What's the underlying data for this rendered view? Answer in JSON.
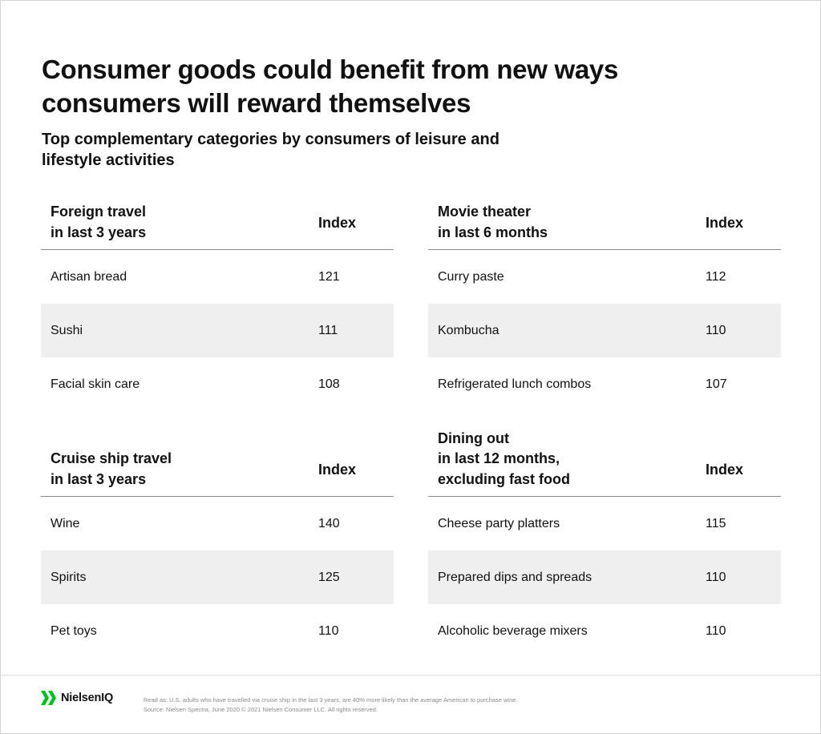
{
  "title": "Consumer goods could benefit from new ways consumers will reward themselves",
  "subtitle": "Top complementary categories by consumers of leisure and lifestyle activities",
  "tables": [
    {
      "header": "Foreign travel\nin last 3 years",
      "index_label": "Index",
      "rows": [
        {
          "name": "Artisan bread",
          "value": "121"
        },
        {
          "name": "Sushi",
          "value": "111"
        },
        {
          "name": "Facial skin care",
          "value": "108"
        }
      ]
    },
    {
      "header": "Movie theater\nin last 6 months",
      "index_label": "Index",
      "rows": [
        {
          "name": "Curry paste",
          "value": "112"
        },
        {
          "name": "Kombucha",
          "value": "110"
        },
        {
          "name": "Refrigerated lunch combos",
          "value": "107"
        }
      ]
    },
    {
      "header": "Cruise ship travel\nin last 3 years",
      "index_label": "Index",
      "rows": [
        {
          "name": "Wine",
          "value": "140"
        },
        {
          "name": "Spirits",
          "value": "125"
        },
        {
          "name": "Pet toys",
          "value": "110"
        }
      ]
    },
    {
      "header": "Dining out\nin last 12 months,\nexcluding fast food",
      "index_label": "Index",
      "rows": [
        {
          "name": "Cheese party platters",
          "value": "115"
        },
        {
          "name": "Prepared dips and spreads",
          "value": "110"
        },
        {
          "name": "Alcoholic beverage mixers",
          "value": "110"
        }
      ]
    }
  ],
  "footer": {
    "brand": "NielsenIQ",
    "brand_color": "#00c41a",
    "note_line1": "Read as: U.S. adults who have travelled via cruise ship in the last 3 years, are 40% more likely than the average American to purchase wine.",
    "note_line2": "Source: Nielsen Spectra, June 2020 © 2021 Nielsen Consumer LLC. All rights reserved."
  }
}
